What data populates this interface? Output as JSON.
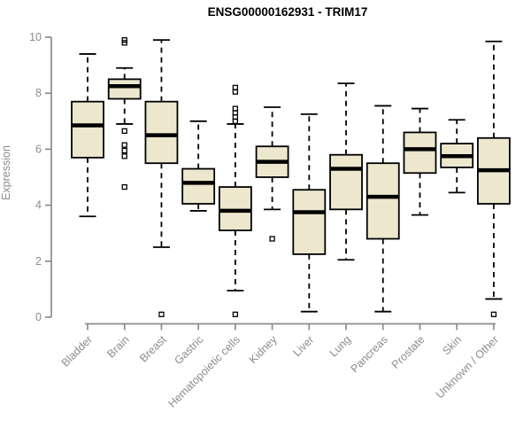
{
  "chart_data": {
    "type": "boxplot",
    "title": "ENSG00000162931 - TRIM17",
    "xlabel": "",
    "ylabel": "Expression",
    "ylim": [
      0,
      10
    ],
    "yticks": [
      0,
      2,
      4,
      6,
      8,
      10
    ],
    "grid": false,
    "legend": false,
    "categories": [
      "Bladder",
      "Brain",
      "Breast",
      "Gastric",
      "Hematopoietic cells",
      "Kidney",
      "Liver",
      "Lung",
      "Pancreas",
      "Prostate",
      "Skin",
      "Unknown / Other"
    ],
    "series": [
      {
        "name": "Bladder",
        "whisker_low": 3.6,
        "q1": 5.7,
        "median": 6.85,
        "q3": 7.7,
        "whisker_high": 9.4,
        "outliers": []
      },
      {
        "name": "Brain",
        "whisker_low": 6.9,
        "q1": 7.8,
        "median": 8.25,
        "q3": 8.5,
        "whisker_high": 8.9,
        "outliers": [
          9.9,
          9.8,
          6.65,
          6.15,
          5.95,
          5.75,
          4.65
        ]
      },
      {
        "name": "Breast",
        "whisker_low": 2.5,
        "q1": 5.5,
        "median": 6.5,
        "q3": 7.7,
        "whisker_high": 9.9,
        "outliers": [
          0.1
        ]
      },
      {
        "name": "Gastric",
        "whisker_low": 3.8,
        "q1": 4.05,
        "median": 4.8,
        "q3": 5.3,
        "whisker_high": 7.0,
        "outliers": []
      },
      {
        "name": "Hematopoietic cells",
        "whisker_low": 0.95,
        "q1": 3.1,
        "median": 3.8,
        "q3": 4.65,
        "whisker_high": 6.9,
        "outliers": [
          8.2,
          8.05,
          7.45,
          7.3,
          7.15,
          7.0,
          0.1
        ]
      },
      {
        "name": "Kidney",
        "whisker_low": 3.85,
        "q1": 5.0,
        "median": 5.55,
        "q3": 6.1,
        "whisker_high": 7.5,
        "outliers": [
          2.8
        ]
      },
      {
        "name": "Liver",
        "whisker_low": 0.2,
        "q1": 2.25,
        "median": 3.75,
        "q3": 4.55,
        "whisker_high": 7.25,
        "outliers": []
      },
      {
        "name": "Lung",
        "whisker_low": 2.05,
        "q1": 3.85,
        "median": 5.3,
        "q3": 5.8,
        "whisker_high": 8.35,
        "outliers": []
      },
      {
        "name": "Pancreas",
        "whisker_low": 0.2,
        "q1": 2.8,
        "median": 4.3,
        "q3": 5.5,
        "whisker_high": 7.55,
        "outliers": []
      },
      {
        "name": "Prostate",
        "whisker_low": 3.65,
        "q1": 5.15,
        "median": 6.0,
        "q3": 6.6,
        "whisker_high": 7.45,
        "outliers": []
      },
      {
        "name": "Skin",
        "whisker_low": 4.45,
        "q1": 5.35,
        "median": 5.75,
        "q3": 6.2,
        "whisker_high": 7.05,
        "outliers": []
      },
      {
        "name": "Unknown / Other",
        "whisker_low": 0.65,
        "q1": 4.05,
        "median": 5.25,
        "q3": 6.4,
        "whisker_high": 9.85,
        "outliers": [
          0.1
        ]
      }
    ],
    "colors": {
      "box_fill": "#EDE7CE",
      "box_stroke": "#000000",
      "median": "#000000",
      "whisker": "#000000",
      "axis": "#8C8C8C",
      "tick_label": "#8C8C8C",
      "title": "#000000",
      "background": "#FFFFFF"
    }
  }
}
